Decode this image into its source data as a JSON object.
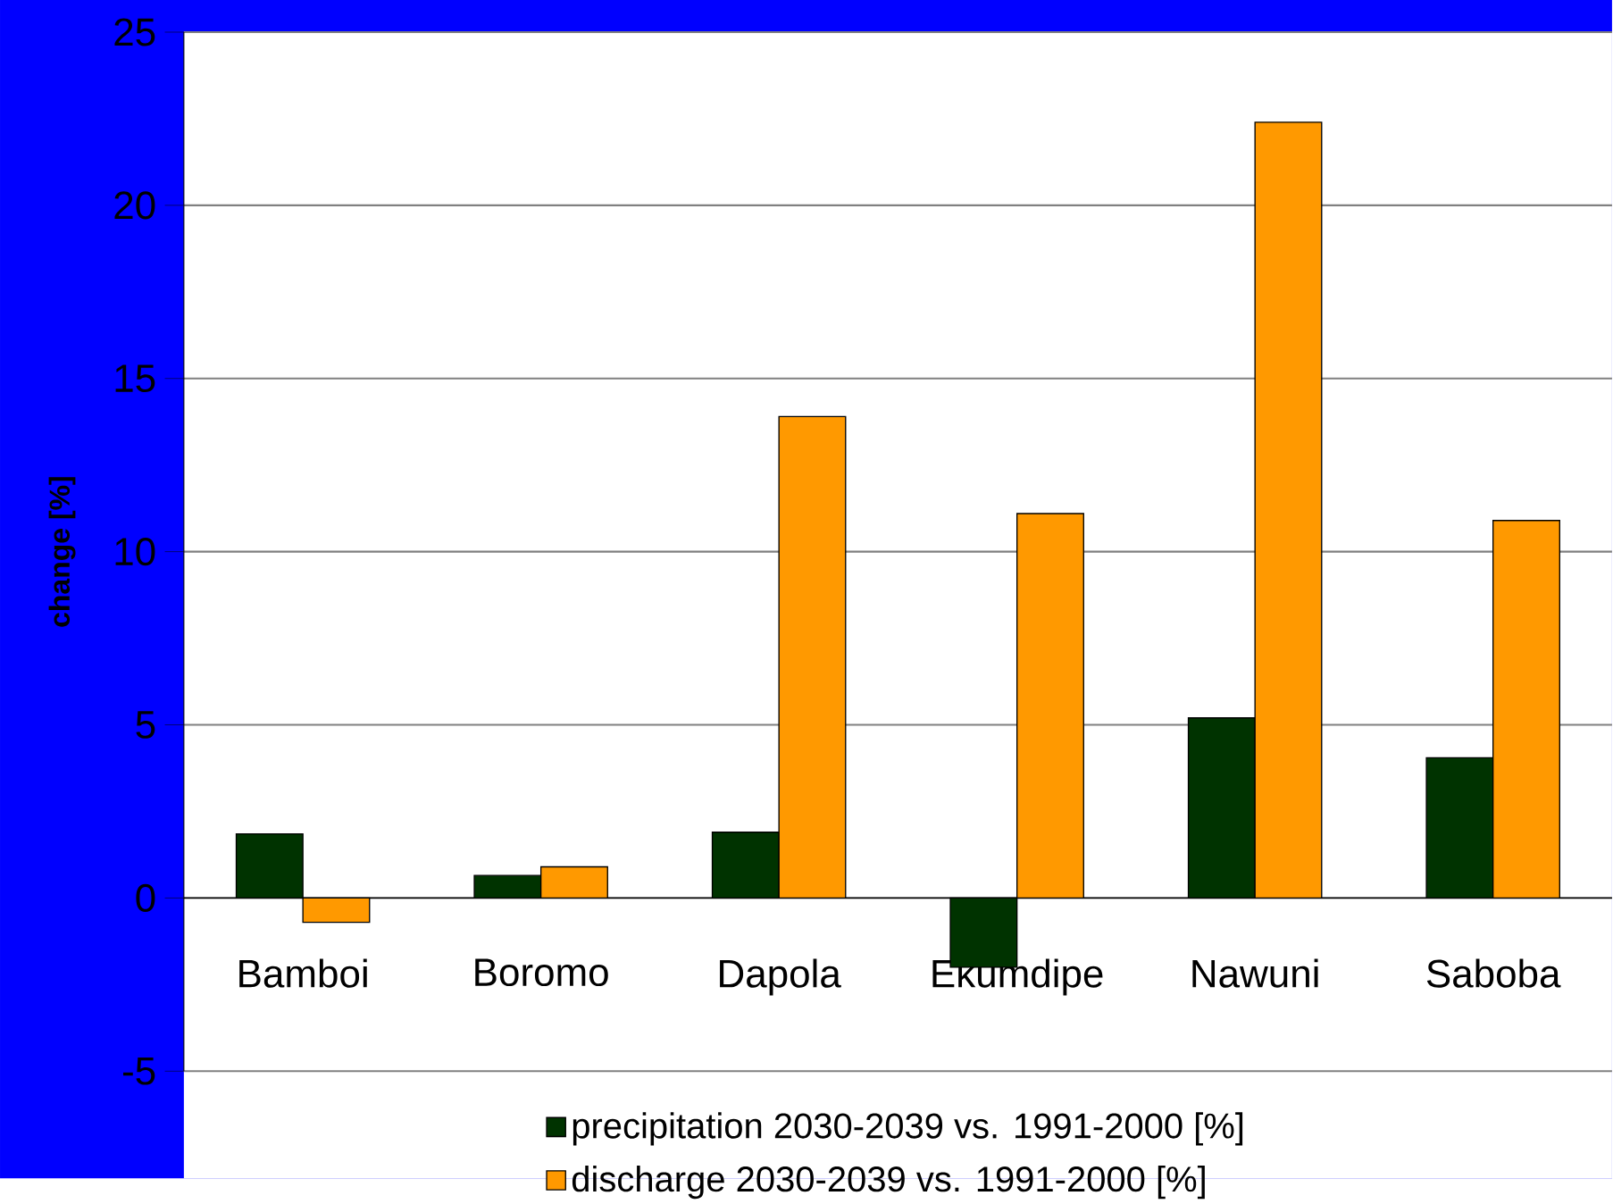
{
  "chart_data": {
    "type": "bar",
    "ylabel": "change [%]",
    "categories": [
      "Bamboi",
      "Boromo",
      "Dapola",
      "Ekumdipe",
      "Nawuni",
      "Saboba"
    ],
    "series": [
      {
        "name": "precipitation 2030-2039 vs. 1991-2000 [%]",
        "color": "#003300",
        "values": [
          1.85,
          0.65,
          1.9,
          -2.0,
          5.2,
          4.05
        ]
      },
      {
        "name": "discharge 2030-2039 vs. 1991-2000 [%]",
        "color": "#ff9900",
        "values": [
          -0.7,
          0.9,
          13.9,
          11.1,
          22.4,
          10.9
        ]
      }
    ],
    "ylim": [
      -5,
      25
    ],
    "yticks": [
      -5,
      0,
      5,
      10,
      15,
      20,
      25
    ],
    "grid": "y",
    "legend": "bottom"
  }
}
